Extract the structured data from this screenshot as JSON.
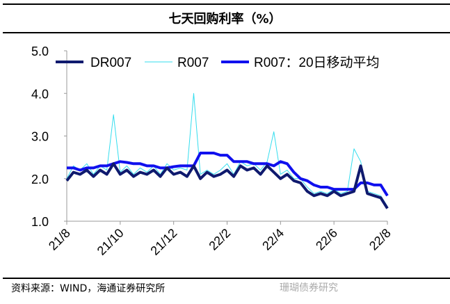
{
  "title": "七天回购利率（%）",
  "source": "资料来源：WIND，海通证券研究所",
  "watermark": "珊瑚债券研究",
  "chart_data": {
    "type": "line",
    "x_start_month": 0,
    "x_step_month": 0.25,
    "xticks": [
      "21/8",
      "21/10",
      "21/12",
      "22/2",
      "22/4",
      "22/6",
      "22/8"
    ],
    "ylim": [
      1.0,
      5.0
    ],
    "yticks": [
      "1.0",
      "2.0",
      "3.0",
      "4.0",
      "5.0"
    ],
    "legend_position": "top",
    "series": [
      {
        "name": "DR007",
        "color": "#0f1a6e",
        "values": [
          1.95,
          2.15,
          2.1,
          2.2,
          2.05,
          2.2,
          2.1,
          2.35,
          2.1,
          2.2,
          2.05,
          2.15,
          2.1,
          2.2,
          2.05,
          2.25,
          2.1,
          2.15,
          2.05,
          2.3,
          2.0,
          2.15,
          2.05,
          2.1,
          2.2,
          2.05,
          2.3,
          2.2,
          2.25,
          2.1,
          2.3,
          2.15,
          2.0,
          2.1,
          1.95,
          1.9,
          1.7,
          1.6,
          1.65,
          1.6,
          1.7,
          1.6,
          1.65,
          1.7,
          2.3,
          1.65,
          1.6,
          1.55,
          1.3
        ]
      },
      {
        "name": "R007",
        "color": "#33ddee",
        "values": [
          2.0,
          2.3,
          2.2,
          2.35,
          2.1,
          2.3,
          2.2,
          3.5,
          2.15,
          2.3,
          2.1,
          2.25,
          2.15,
          2.3,
          2.1,
          2.35,
          2.2,
          2.25,
          2.2,
          4.0,
          2.1,
          2.2,
          2.1,
          2.2,
          2.35,
          2.1,
          2.4,
          2.3,
          2.35,
          2.2,
          2.4,
          3.1,
          2.1,
          2.2,
          2.0,
          2.0,
          1.8,
          1.65,
          1.7,
          1.65,
          1.75,
          1.65,
          1.7,
          2.7,
          2.4,
          1.7,
          1.65,
          1.6,
          1.35
        ]
      },
      {
        "name": "R007：20日移动平均",
        "color": "#1010ee",
        "values": [
          2.25,
          2.25,
          2.2,
          2.25,
          2.25,
          2.3,
          2.3,
          2.35,
          2.4,
          2.38,
          2.35,
          2.35,
          2.3,
          2.3,
          2.25,
          2.25,
          2.28,
          2.3,
          2.3,
          2.3,
          2.6,
          2.6,
          2.6,
          2.55,
          2.55,
          2.4,
          2.4,
          2.4,
          2.35,
          2.35,
          2.35,
          2.3,
          2.4,
          2.35,
          2.15,
          2.0,
          1.95,
          1.85,
          1.8,
          1.8,
          1.75,
          1.75,
          1.75,
          1.75,
          1.9,
          1.9,
          1.85,
          1.85,
          1.6
        ]
      }
    ]
  }
}
